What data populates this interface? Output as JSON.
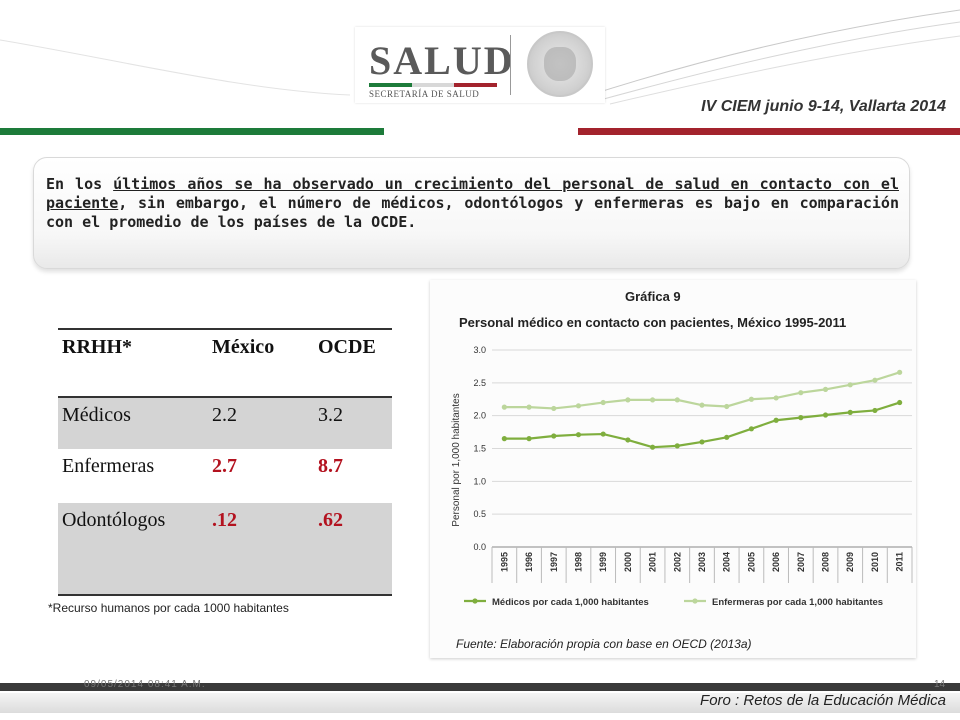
{
  "header": {
    "logo_text": "SALUD",
    "logo_subtext": "SECRETARÍA DE SALUD",
    "seal_text": "ESTADOS UNIDOS MEXICANOS",
    "conference": "IV CIEM junio 9-14, Vallarta 2014",
    "colors": {
      "green": "#1d7b3a",
      "red": "#a3232d"
    }
  },
  "callout": {
    "part1": "En los ",
    "part2": "últimos años se ha observado un crecimiento del personal de salud en contacto con el paciente",
    "part3": ", sin embargo, el número de médicos, odontólogos y enfermeras es bajo en comparación con el promedio de los países de la OCDE."
  },
  "table": {
    "headers": [
      "RRHH*",
      "México",
      "OCDE"
    ],
    "rows": [
      [
        "Médicos",
        "2.2",
        "3.2"
      ],
      [
        "Enfermeras",
        "2.7",
        "8.7"
      ],
      [
        "Odontólogos",
        ".12",
        ".62"
      ]
    ],
    "footnote": "*Recurso humanos por cada 1000 habitantes"
  },
  "chart_data": {
    "type": "line",
    "label": "Gráfica 9",
    "title": "Personal médico en contacto con pacientes, México 1995-2011",
    "ylabel": "Personal por 1,000 habitantes",
    "xlabel": "",
    "ylim": [
      0,
      3.0
    ],
    "yticks": [
      "0.0",
      "0.5",
      "1.0",
      "1.5",
      "2.0",
      "2.5",
      "3.0"
    ],
    "x": [
      "1995",
      "1996",
      "1997",
      "1998",
      "1999",
      "2000",
      "2001",
      "2002",
      "2003",
      "2004",
      "2005",
      "2006",
      "2007",
      "2008",
      "2009",
      "2010",
      "2011"
    ],
    "series": [
      {
        "name": "Médicos por cada 1,000 habitantes",
        "color": "#7fae3e",
        "values": [
          1.65,
          1.65,
          1.69,
          1.71,
          1.72,
          1.63,
          1.52,
          1.54,
          1.6,
          1.67,
          1.8,
          1.93,
          1.97,
          2.01,
          2.05,
          2.08,
          2.2
        ]
      },
      {
        "name": "Enfermeras por cada 1,000 habitantes",
        "color": "#bcd69c",
        "values": [
          2.13,
          2.13,
          2.11,
          2.15,
          2.2,
          2.24,
          2.24,
          2.24,
          2.16,
          2.14,
          2.25,
          2.27,
          2.35,
          2.4,
          2.47,
          2.54,
          2.66
        ]
      }
    ],
    "grid": true,
    "legend": "bottom",
    "source": "Fuente: Elaboración propia con base en OECD (2013a)"
  },
  "footer": {
    "date": "09/05/2014 08:41 A.M.",
    "page": "14",
    "foro": "Foro : Retos de la Educación Médica"
  }
}
